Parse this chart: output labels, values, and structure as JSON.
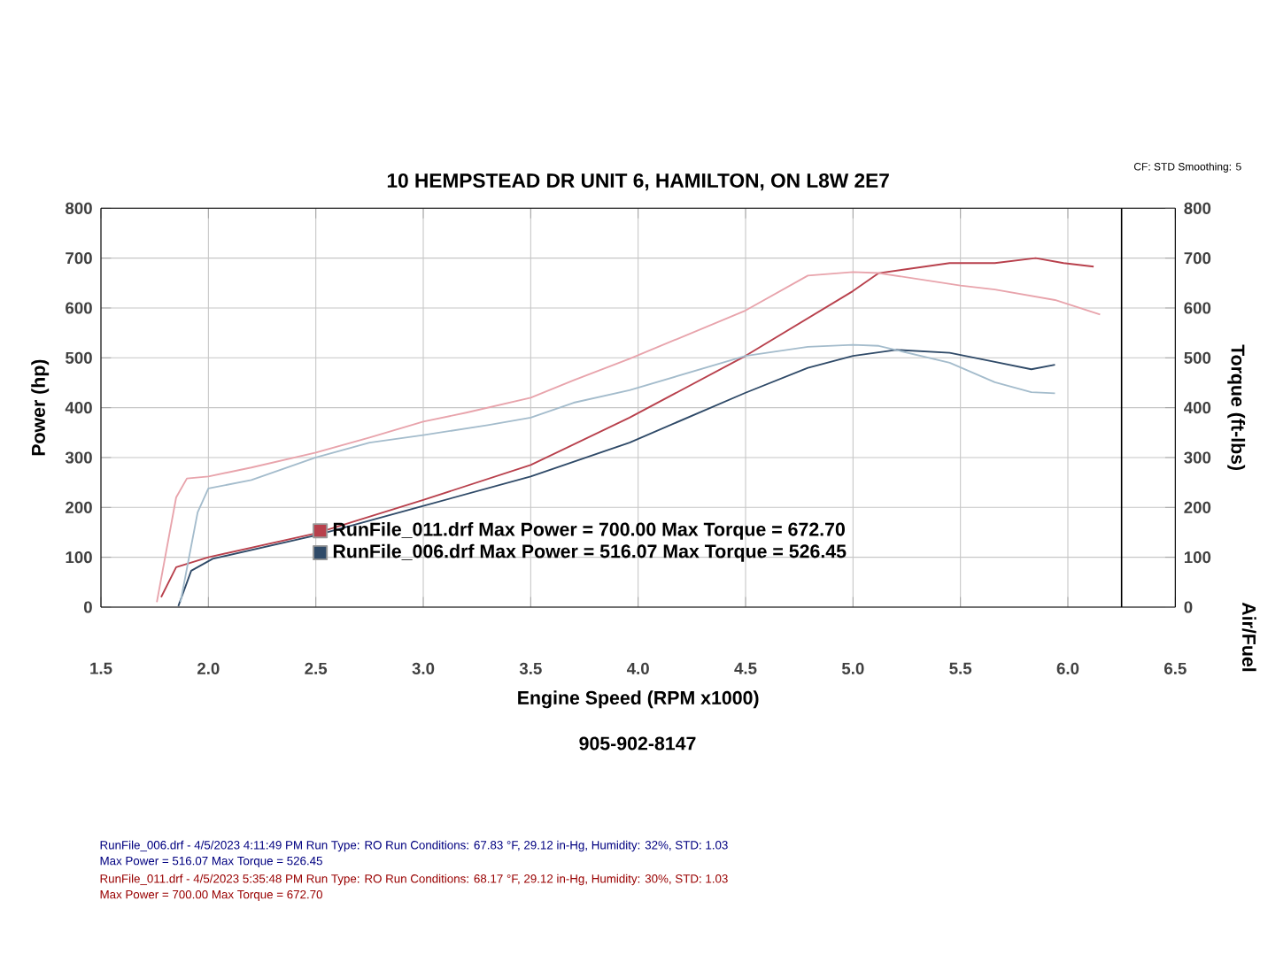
{
  "chart_data": {
    "type": "line",
    "title": "10 HEMPSTEAD DR UNIT 6, HAMILTON, ON L8W 2E7",
    "xlabel": "Engine Speed (RPM x1000)",
    "ylabel": "Power (hp)",
    "y2label": "Torque (ft-lbs)",
    "xlim": [
      1.5,
      6.5
    ],
    "xticks": [
      1.5,
      {
        "value": 2,
        "label": "2.0"
      },
      2.5,
      {
        "value": 3,
        "label": "3.0"
      },
      3.5,
      {
        "value": 4,
        "label": "4.0"
      },
      4.5,
      {
        "value": 5,
        "label": "5.0"
      },
      5.5,
      {
        "value": 6,
        "label": "6.0"
      },
      6.5
    ],
    "ylim": [
      0,
      800
    ],
    "yticks": [
      0,
      100,
      200,
      300,
      400,
      500,
      600,
      700,
      800
    ],
    "y2lim": [
      0,
      800
    ],
    "y2ticks": [
      0,
      100,
      200,
      300,
      400,
      500,
      600,
      700,
      800
    ],
    "grid": true,
    "legend": "bottom left",
    "marker": "none",
    "line_style": "solid",
    "ref_lines": [
      {
        "axis": "x",
        "value": 6.25
      }
    ],
    "series": [
      {
        "name": "RunFile_011.drf Max Power = 700.00     Max Torque = 672.70",
        "color": "#b8404c",
        "x": [
          1.78,
          1.85,
          2.0,
          2.5,
          3.0,
          3.5,
          3.96,
          4.5,
          5.0,
          5.12,
          5.45,
          5.66,
          5.85,
          5.98,
          6.12
        ],
        "values": [
          20,
          80,
          100,
          148,
          215,
          285,
          380,
          504,
          634,
          670,
          690,
          690,
          700,
          690,
          683
        ]
      },
      {
        "name": "RunFile_006.drf Max Power = 516.07     Max Torque = 526.45",
        "color": "#2f4a68",
        "x": [
          1.86,
          1.92,
          2.02,
          2.5,
          3.0,
          3.5,
          3.96,
          4.5,
          4.79,
          5.0,
          5.2,
          5.45,
          5.66,
          5.83,
          5.94
        ],
        "values": [
          2,
          73,
          97,
          144,
          203,
          262,
          330,
          430,
          480,
          504,
          516,
          510,
          492,
          477,
          486
        ]
      },
      {
        "axis": "y2",
        "color": "#e8a4ac",
        "x": [
          1.76,
          1.85,
          1.9,
          2.0,
          2.2,
          2.5,
          2.75,
          3.0,
          3.2,
          3.5,
          3.7,
          3.96,
          4.5,
          4.79,
          5.0,
          5.12,
          5.5,
          5.66,
          5.94,
          6.15
        ],
        "values": [
          10,
          220,
          258,
          262,
          280,
          310,
          340,
          372,
          390,
          420,
          455,
          498,
          595,
          665,
          672,
          670,
          645,
          637,
          616,
          587
        ]
      },
      {
        "axis": "y2",
        "color": "#a4bccc",
        "x": [
          1.87,
          1.95,
          2.0,
          2.2,
          2.5,
          2.75,
          3.0,
          3.3,
          3.5,
          3.7,
          3.96,
          4.5,
          4.79,
          5.0,
          5.12,
          5.45,
          5.66,
          5.83,
          5.94
        ],
        "values": [
          10,
          190,
          238,
          255,
          300,
          330,
          345,
          365,
          380,
          410,
          435,
          504,
          522,
          526,
          524,
          490,
          451,
          431,
          429
        ]
      }
    ],
    "annotations": [
      "CF: STD Smoothing: 5",
      "Air/Fuel",
      "905-902-8147",
      "RunFile_006.drf - 4/5/2023 4:11:49 PM  Run Type: RO  Run Conditions: 67.83 °F, 29.12 in-Hg, Humidity: 32%, STD: 1.03",
      "Max Power = 516.07  Max Torque = 526.45",
      "RunFile_011.drf - 4/5/2023 5:35:48 PM  Run Type: RO  Run Conditions: 68.17 °F, 29.12 in-Hg, Humidity: 30%, STD: 1.03",
      "Max Power = 700.00  Max Torque = 672.70"
    ]
  }
}
